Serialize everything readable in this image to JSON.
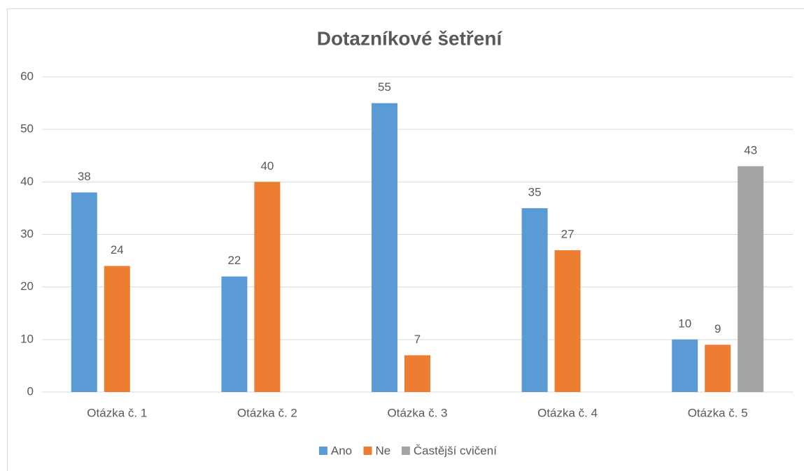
{
  "chart_data": {
    "type": "bar",
    "title": "Dotazníkové šetření",
    "categories": [
      "Otázka č. 1",
      "Otázka č. 2",
      "Otázka č. 3",
      "Otázka č. 4",
      "Otázka č. 5"
    ],
    "series": [
      {
        "name": "Ano",
        "color": "#5b9bd5",
        "values": [
          38,
          22,
          55,
          35,
          10
        ]
      },
      {
        "name": "Ne",
        "color": "#ed7d31",
        "values": [
          24,
          40,
          7,
          27,
          9
        ]
      },
      {
        "name": "Častější cvičení",
        "color": "#a5a5a5",
        "values": [
          null,
          null,
          null,
          null,
          43
        ]
      }
    ],
    "ylim": [
      0,
      60
    ],
    "yticks": [
      0,
      10,
      20,
      30,
      40,
      50,
      60
    ],
    "grid": true,
    "legend": "bottom"
  }
}
